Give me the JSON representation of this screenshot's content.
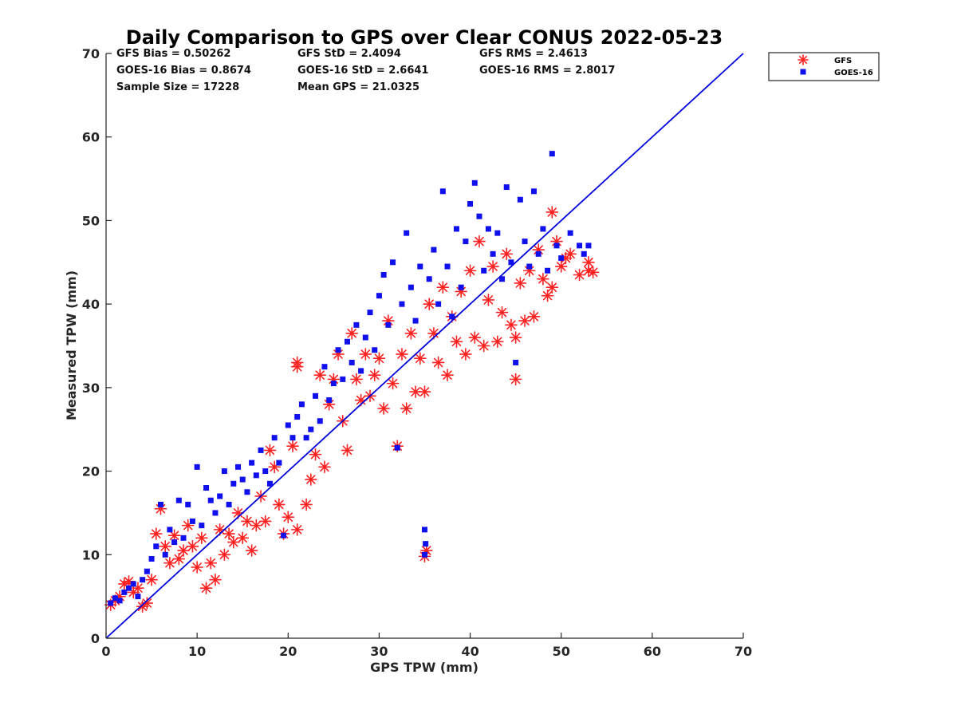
{
  "chart_data": {
    "type": "scatter",
    "title": "Daily Comparison to GPS over Clear CONUS 2022-05-23",
    "xlabel": "GPS TPW (mm)",
    "ylabel": "Measured TPW (mm)",
    "xlim": [
      0,
      70
    ],
    "ylim": [
      0,
      70
    ],
    "xticks": [
      "0",
      "10",
      "20",
      "30",
      "40",
      "50",
      "60",
      "70"
    ],
    "yticks": [
      "0",
      "10",
      "20",
      "30",
      "40",
      "50",
      "60",
      "70"
    ],
    "grid": false,
    "legend_position": "outside-top-right",
    "stats": {
      "gfs_bias": "GFS Bias = 0.50262",
      "gfs_std": "GFS StD = 2.4094",
      "gfs_rms": "GFS RMS = 2.4613",
      "goes_bias": "GOES-16 Bias = 0.8674",
      "goes_std": "GOES-16 StD = 2.6641",
      "goes_rms": "GOES-16 RMS = 2.8017",
      "sample_size": "Sample Size = 17228",
      "mean_gps": "Mean GPS = 21.0325"
    },
    "reference_line": {
      "name": "1:1 line",
      "x": [
        0,
        70
      ],
      "y": [
        0,
        70
      ],
      "color": "#0000dd"
    },
    "series": [
      {
        "name": "GFS",
        "marker": "asterisk",
        "color": "#ff2020",
        "points": [
          [
            0.5,
            4.0
          ],
          [
            1.0,
            4.5
          ],
          [
            1.5,
            5.0
          ],
          [
            2.0,
            6.5
          ],
          [
            2.5,
            6.8
          ],
          [
            3.0,
            5.5
          ],
          [
            3.5,
            6.0
          ],
          [
            4.0,
            3.8
          ],
          [
            4.5,
            4.2
          ],
          [
            5.0,
            7.0
          ],
          [
            5.5,
            12.5
          ],
          [
            6.0,
            15.5
          ],
          [
            6.5,
            11.0
          ],
          [
            7.0,
            9.0
          ],
          [
            7.5,
            12.3
          ],
          [
            8.0,
            9.5
          ],
          [
            8.5,
            10.5
          ],
          [
            9.0,
            13.5
          ],
          [
            9.5,
            11.0
          ],
          [
            10.0,
            8.5
          ],
          [
            10.5,
            12.0
          ],
          [
            11.0,
            6.0
          ],
          [
            11.5,
            9.0
          ],
          [
            12.0,
            7.0
          ],
          [
            12.5,
            13.0
          ],
          [
            13.0,
            10.0
          ],
          [
            13.5,
            12.5
          ],
          [
            14.0,
            11.5
          ],
          [
            14.5,
            15.0
          ],
          [
            15.0,
            12.0
          ],
          [
            15.5,
            14.0
          ],
          [
            16.0,
            10.5
          ],
          [
            16.5,
            13.5
          ],
          [
            17.0,
            17.0
          ],
          [
            17.5,
            14.0
          ],
          [
            18.0,
            22.5
          ],
          [
            18.5,
            20.5
          ],
          [
            19.0,
            16.0
          ],
          [
            19.5,
            12.5
          ],
          [
            20.0,
            14.5
          ],
          [
            20.5,
            23.0
          ],
          [
            21.0,
            32.5
          ],
          [
            21.0,
            33.0
          ],
          [
            21.0,
            13.0
          ],
          [
            22.0,
            16.0
          ],
          [
            22.5,
            19.0
          ],
          [
            23.0,
            22.0
          ],
          [
            23.5,
            31.5
          ],
          [
            24.0,
            20.5
          ],
          [
            24.5,
            28.0
          ],
          [
            25.0,
            31.0
          ],
          [
            25.5,
            34.0
          ],
          [
            26.0,
            26.0
          ],
          [
            26.5,
            22.5
          ],
          [
            27.0,
            36.5
          ],
          [
            27.5,
            31.0
          ],
          [
            28.0,
            28.5
          ],
          [
            28.5,
            34.0
          ],
          [
            29.0,
            29.0
          ],
          [
            29.5,
            31.5
          ],
          [
            30.0,
            33.5
          ],
          [
            30.5,
            27.5
          ],
          [
            31.0,
            38.0
          ],
          [
            31.5,
            30.5
          ],
          [
            32.0,
            23.0
          ],
          [
            32.5,
            34.0
          ],
          [
            33.0,
            27.5
          ],
          [
            33.5,
            36.5
          ],
          [
            34.0,
            29.5
          ],
          [
            34.5,
            33.5
          ],
          [
            35.0,
            29.5
          ],
          [
            35.0,
            9.8
          ],
          [
            35.2,
            10.5
          ],
          [
            35.5,
            40.0
          ],
          [
            36.0,
            36.5
          ],
          [
            36.5,
            33.0
          ],
          [
            37.0,
            42.0
          ],
          [
            37.5,
            31.5
          ],
          [
            38.0,
            38.5
          ],
          [
            38.5,
            35.5
          ],
          [
            39.0,
            41.5
          ],
          [
            39.5,
            34.0
          ],
          [
            40.0,
            44.0
          ],
          [
            40.5,
            36.0
          ],
          [
            41.0,
            47.5
          ],
          [
            41.5,
            35.0
          ],
          [
            42.0,
            40.5
          ],
          [
            42.5,
            44.5
          ],
          [
            43.0,
            35.5
          ],
          [
            43.5,
            39.0
          ],
          [
            44.0,
            46.0
          ],
          [
            44.5,
            37.5
          ],
          [
            45.0,
            31.0
          ],
          [
            45.0,
            36.0
          ],
          [
            45.5,
            42.5
          ],
          [
            46.0,
            38.0
          ],
          [
            46.5,
            44.0
          ],
          [
            47.0,
            38.5
          ],
          [
            47.5,
            46.5
          ],
          [
            48.0,
            43.0
          ],
          [
            48.5,
            41.0
          ],
          [
            49.0,
            51.0
          ],
          [
            49.0,
            42.0
          ],
          [
            49.5,
            47.5
          ],
          [
            50.0,
            44.5
          ],
          [
            50.5,
            45.5
          ],
          [
            51.0,
            46.0
          ],
          [
            52.0,
            43.5
          ],
          [
            53.0,
            44.0
          ],
          [
            53.0,
            45.0
          ],
          [
            53.5,
            43.8
          ]
        ]
      },
      {
        "name": "GOES-16",
        "marker": "square",
        "color": "#1010ee",
        "points": [
          [
            0.5,
            4.2
          ],
          [
            1.0,
            4.8
          ],
          [
            1.5,
            4.5
          ],
          [
            2.0,
            5.5
          ],
          [
            2.5,
            6.0
          ],
          [
            3.0,
            6.5
          ],
          [
            3.5,
            5.0
          ],
          [
            4.0,
            7.0
          ],
          [
            4.5,
            8.0
          ],
          [
            5.0,
            9.5
          ],
          [
            5.5,
            11.0
          ],
          [
            6.0,
            16.0
          ],
          [
            6.5,
            10.0
          ],
          [
            7.0,
            13.0
          ],
          [
            7.5,
            11.5
          ],
          [
            8.0,
            16.5
          ],
          [
            8.5,
            12.0
          ],
          [
            9.0,
            16.0
          ],
          [
            9.5,
            14.0
          ],
          [
            10.0,
            20.5
          ],
          [
            10.5,
            13.5
          ],
          [
            11.0,
            18.0
          ],
          [
            11.5,
            16.5
          ],
          [
            12.0,
            15.0
          ],
          [
            12.5,
            17.0
          ],
          [
            13.0,
            20.0
          ],
          [
            13.5,
            16.0
          ],
          [
            14.0,
            18.5
          ],
          [
            14.5,
            20.5
          ],
          [
            15.0,
            19.0
          ],
          [
            15.5,
            17.5
          ],
          [
            16.0,
            21.0
          ],
          [
            16.5,
            19.5
          ],
          [
            17.0,
            22.5
          ],
          [
            17.5,
            20.0
          ],
          [
            18.0,
            18.5
          ],
          [
            18.5,
            24.0
          ],
          [
            19.0,
            21.0
          ],
          [
            19.5,
            12.3
          ],
          [
            20.0,
            25.5
          ],
          [
            20.5,
            24.0
          ],
          [
            21.0,
            26.5
          ],
          [
            21.5,
            28.0
          ],
          [
            22.0,
            24.0
          ],
          [
            22.5,
            25.0
          ],
          [
            23.0,
            29.0
          ],
          [
            23.5,
            26.0
          ],
          [
            24.0,
            32.5
          ],
          [
            24.5,
            28.5
          ],
          [
            25.0,
            30.5
          ],
          [
            25.5,
            34.5
          ],
          [
            26.0,
            31.0
          ],
          [
            26.5,
            35.5
          ],
          [
            27.0,
            33.0
          ],
          [
            27.5,
            37.5
          ],
          [
            28.0,
            32.0
          ],
          [
            28.5,
            36.0
          ],
          [
            29.0,
            39.0
          ],
          [
            29.5,
            34.5
          ],
          [
            30.0,
            41.0
          ],
          [
            30.5,
            43.5
          ],
          [
            31.0,
            37.5
          ],
          [
            31.5,
            45.0
          ],
          [
            32.0,
            22.8
          ],
          [
            32.5,
            40.0
          ],
          [
            33.0,
            48.5
          ],
          [
            33.5,
            42.0
          ],
          [
            34.0,
            38.0
          ],
          [
            34.5,
            44.5
          ],
          [
            35.0,
            13.0
          ],
          [
            35.0,
            10.0
          ],
          [
            35.1,
            11.3
          ],
          [
            35.5,
            43.0
          ],
          [
            36.0,
            46.5
          ],
          [
            36.5,
            40.0
          ],
          [
            37.0,
            53.5
          ],
          [
            37.5,
            44.5
          ],
          [
            38.0,
            38.5
          ],
          [
            38.5,
            49.0
          ],
          [
            39.0,
            42.0
          ],
          [
            39.5,
            47.5
          ],
          [
            40.0,
            52.0
          ],
          [
            40.5,
            54.5
          ],
          [
            41.0,
            50.5
          ],
          [
            41.5,
            44.0
          ],
          [
            42.0,
            49.0
          ],
          [
            42.5,
            46.0
          ],
          [
            43.0,
            48.5
          ],
          [
            43.5,
            43.0
          ],
          [
            44.0,
            54.0
          ],
          [
            44.5,
            45.0
          ],
          [
            45.0,
            33.0
          ],
          [
            45.5,
            52.5
          ],
          [
            46.0,
            47.5
          ],
          [
            46.5,
            44.5
          ],
          [
            47.0,
            53.5
          ],
          [
            47.5,
            46.0
          ],
          [
            48.0,
            49.0
          ],
          [
            48.5,
            44.0
          ],
          [
            49.0,
            58.0
          ],
          [
            49.5,
            47.0
          ],
          [
            50.0,
            45.5
          ],
          [
            51.0,
            48.5
          ],
          [
            52.0,
            47.0
          ],
          [
            52.5,
            46.0
          ],
          [
            53.0,
            47.0
          ]
        ]
      }
    ]
  }
}
